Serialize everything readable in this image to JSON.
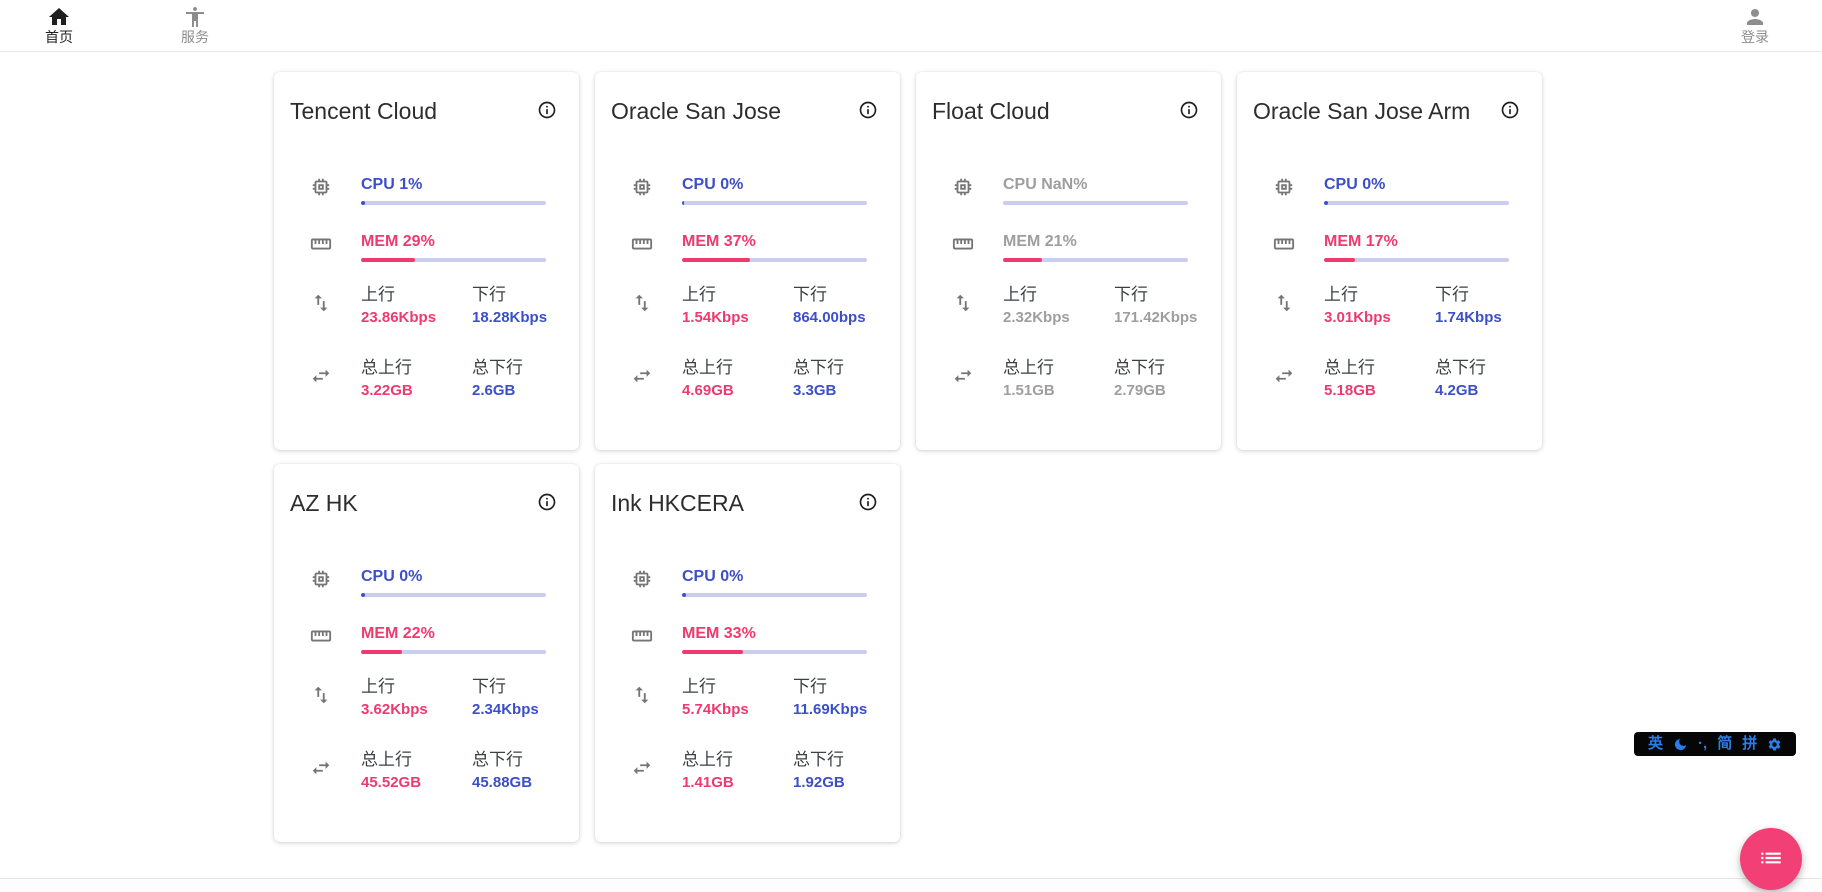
{
  "nav": {
    "items": [
      {
        "label": "首页",
        "icon": "home",
        "active": true
      },
      {
        "label": "服务",
        "icon": "accessibility",
        "active": false
      }
    ],
    "login": {
      "label": "登录",
      "icon": "person"
    }
  },
  "labels": {
    "cpu": "CPU",
    "mem": "MEM",
    "up": "上行",
    "down": "下行",
    "total_up": "总上行",
    "total_down": "总下行"
  },
  "servers": [
    {
      "name": "Tencent Cloud",
      "cpu_text": "CPU 1%",
      "cpu_bar": 2,
      "mem_text": "MEM 29%",
      "mem_bar": 29,
      "online": true,
      "up": "23.86Kbps",
      "down": "18.28Kbps",
      "total_up": "3.22GB",
      "total_down": "2.6GB"
    },
    {
      "name": "Oracle San Jose",
      "cpu_text": "CPU 0%",
      "cpu_bar": 1,
      "mem_text": "MEM 37%",
      "mem_bar": 37,
      "online": true,
      "up": "1.54Kbps",
      "down": "864.00bps",
      "total_up": "4.69GB",
      "total_down": "3.3GB"
    },
    {
      "name": "Float Cloud",
      "cpu_text": "CPU NaN%",
      "cpu_bar": 0,
      "mem_text": "MEM 21%",
      "mem_bar": 21,
      "online": false,
      "up": "2.32Kbps",
      "down": "171.42Kbps",
      "total_up": "1.51GB",
      "total_down": "2.79GB"
    },
    {
      "name": "Oracle San Jose Arm",
      "cpu_text": "CPU 0%",
      "cpu_bar": 2,
      "mem_text": "MEM 17%",
      "mem_bar": 17,
      "online": true,
      "up": "3.01Kbps",
      "down": "1.74Kbps",
      "total_up": "5.18GB",
      "total_down": "4.2GB"
    },
    {
      "name": "AZ HK",
      "cpu_text": "CPU 0%",
      "cpu_bar": 2,
      "mem_text": "MEM 22%",
      "mem_bar": 22,
      "online": true,
      "up": "3.62Kbps",
      "down": "2.34Kbps",
      "total_up": "45.52GB",
      "total_down": "45.88GB"
    },
    {
      "name": "Ink HKCERA",
      "cpu_text": "CPU 0%",
      "cpu_bar": 2,
      "mem_text": "MEM 33%",
      "mem_bar": 33,
      "online": true,
      "up": "5.74Kbps",
      "down": "11.69Kbps",
      "total_up": "1.41GB",
      "total_down": "1.92GB"
    }
  ],
  "ime_bar": {
    "lang": "英",
    "punct": "·,",
    "simplified": "简",
    "pinyin": "拼"
  },
  "colors": {
    "accent_blue": "#3d4fc8",
    "accent_pink": "#ee3a6f",
    "bar_track": "#c9cdee",
    "offline_gray": "#9e9e9e",
    "fab_pink": "#f23f75",
    "ime_blue": "#2b7de9"
  }
}
